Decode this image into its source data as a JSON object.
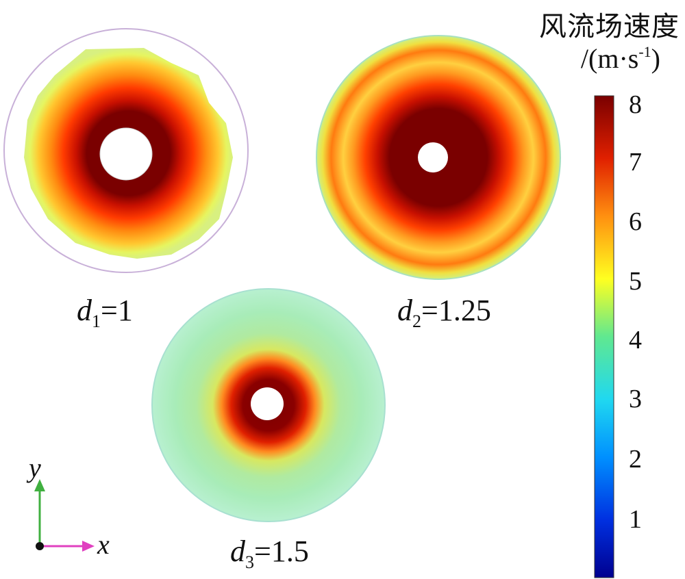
{
  "colorbar": {
    "title": "风流场速度",
    "unit_base": "/(m·s",
    "unit_exp": "-1",
    "unit_close": ")",
    "ticks": [
      "8",
      "7",
      "6",
      "5",
      "4",
      "3",
      "2",
      "1"
    ],
    "min": 0,
    "max": 8,
    "colors": [
      "#00008f",
      "#0050ff",
      "#00c8ff",
      "#40e0c0",
      "#a0ff60",
      "#ffff00",
      "#ff9000",
      "#ff2000",
      "#800000"
    ]
  },
  "plots": [
    {
      "var": "d",
      "sub": "1",
      "value": "=1"
    },
    {
      "var": "d",
      "sub": "2",
      "value": "=1.25"
    },
    {
      "var": "d",
      "sub": "3",
      "value": "=1.5"
    }
  ],
  "axes": {
    "x": "x",
    "y": "y"
  }
}
